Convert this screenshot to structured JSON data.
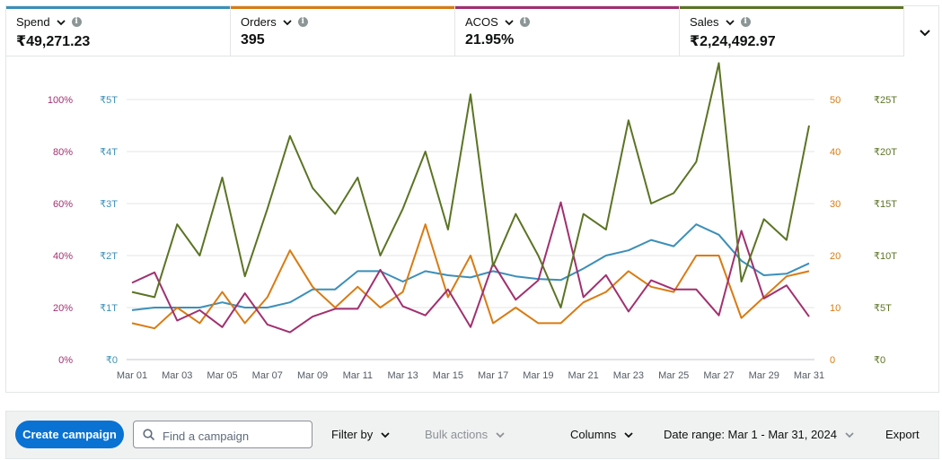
{
  "metrics": [
    {
      "name": "Spend",
      "value": "₹49,271.23",
      "color": "#3b8fb8"
    },
    {
      "name": "Orders",
      "value": "395",
      "color": "#d97b12"
    },
    {
      "name": "ACOS",
      "value": "21.95%",
      "color": "#a1306f"
    },
    {
      "name": "Sales",
      "value": "₹2,24,492.97",
      "color": "#5b7424"
    }
  ],
  "icons": {
    "metric_dropdown": "chevron-down-icon",
    "metric_info": "info-icon",
    "expand": "chevron-down-icon",
    "search": "search-icon"
  },
  "chart_data": {
    "type": "line",
    "categories": [
      "Mar 01",
      "Mar 02",
      "Mar 03",
      "Mar 04",
      "Mar 05",
      "Mar 06",
      "Mar 07",
      "Mar 08",
      "Mar 09",
      "Mar 10",
      "Mar 11",
      "Mar 12",
      "Mar 13",
      "Mar 14",
      "Mar 15",
      "Mar 16",
      "Mar 17",
      "Mar 18",
      "Mar 19",
      "Mar 20",
      "Mar 21",
      "Mar 22",
      "Mar 23",
      "Mar 24",
      "Mar 25",
      "Mar 26",
      "Mar 27",
      "Mar 28",
      "Mar 29",
      "Mar 30",
      "Mar 31"
    ],
    "x_tick_labels": [
      "Mar 01",
      "Mar 03",
      "Mar 05",
      "Mar 07",
      "Mar 09",
      "Mar 11",
      "Mar 13",
      "Mar 15",
      "Mar 17",
      "Mar 19",
      "Mar 21",
      "Mar 23",
      "Mar 25",
      "Mar 27",
      "Mar 29",
      "Mar 31"
    ],
    "axes": {
      "acos": {
        "ticks": [
          "0%",
          "20%",
          "40%",
          "60%",
          "80%",
          "100%"
        ],
        "range": [
          0,
          100
        ],
        "color": "#a1306f"
      },
      "spend": {
        "ticks": [
          "₹0",
          "₹1T",
          "₹2T",
          "₹3T",
          "₹4T",
          "₹5T"
        ],
        "range": [
          0,
          5
        ],
        "color": "#3b8fb8"
      },
      "orders": {
        "ticks": [
          "0",
          "10",
          "20",
          "30",
          "40",
          "50"
        ],
        "range": [
          0,
          50
        ],
        "color": "#d97b12"
      },
      "sales": {
        "ticks": [
          "₹0",
          "₹5T",
          "₹10T",
          "₹15T",
          "₹20T",
          "₹25T"
        ],
        "range": [
          0,
          25
        ],
        "color": "#5b7424"
      }
    },
    "series": [
      {
        "name": "Spend",
        "axis": "spend",
        "color": "#3b8fb8",
        "values": [
          0.95,
          1.0,
          1.0,
          1.0,
          1.1,
          1.0,
          1.0,
          1.1,
          1.35,
          1.35,
          1.7,
          1.7,
          1.5,
          1.7,
          1.62,
          1.58,
          1.7,
          1.6,
          1.55,
          1.53,
          1.75,
          2.0,
          2.1,
          2.3,
          2.18,
          2.6,
          2.4,
          1.9,
          1.62,
          1.65,
          1.85
        ]
      },
      {
        "name": "Orders",
        "axis": "orders",
        "color": "#d97b12",
        "values": [
          7,
          6,
          10,
          7,
          13,
          7,
          12,
          21,
          14,
          10,
          14,
          10,
          13,
          26,
          12,
          20,
          7,
          10,
          7,
          7,
          11,
          13,
          17,
          14,
          13,
          20,
          20,
          8,
          12,
          16,
          17
        ]
      },
      {
        "name": "ACOS",
        "axis": "acos",
        "color": "#a1306f",
        "values": [
          29.5,
          33.5,
          15,
          19,
          12.5,
          25.5,
          13.5,
          10.5,
          16.5,
          19.5,
          19.5,
          34.5,
          20.5,
          17,
          27,
          12.5,
          37,
          23,
          30.5,
          60.5,
          24,
          32.5,
          18.5,
          30.5,
          27,
          27,
          17,
          49.5,
          23.5,
          28.5,
          16.5
        ]
      },
      {
        "name": "Sales",
        "axis": "sales",
        "color": "#5b7424",
        "values": [
          6.5,
          6.0,
          13.0,
          10.0,
          17.5,
          8.0,
          14.5,
          21.5,
          16.5,
          14.0,
          17.5,
          10.0,
          14.5,
          20.0,
          12.5,
          25.5,
          9.0,
          14.0,
          10.0,
          5.0,
          14.0,
          12.5,
          23.0,
          15.0,
          16.0,
          19.0,
          28.5,
          7.5,
          13.5,
          11.5,
          22.5
        ]
      }
    ],
    "grid": true,
    "legend": "none"
  },
  "toolbar": {
    "create_label": "Create campaign",
    "search_placeholder": "Find a campaign",
    "filter_label": "Filter by",
    "bulk_label": "Bulk actions",
    "columns_label": "Columns",
    "date_label": "Date range: Mar 1 - Mar 31, 2024",
    "export_label": "Export"
  }
}
